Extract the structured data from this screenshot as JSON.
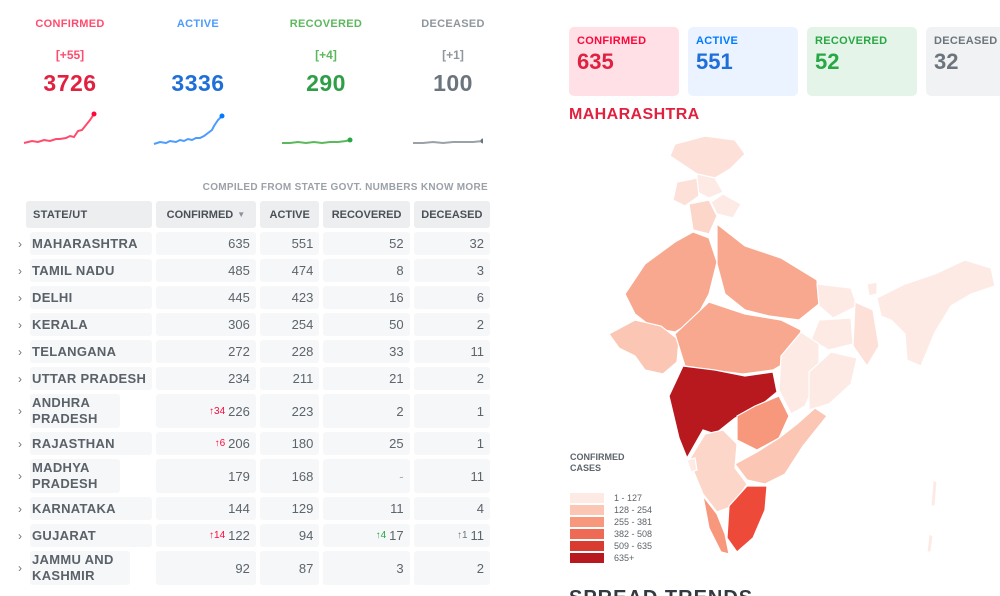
{
  "summary": [
    {
      "label": "CONFIRMED",
      "delta": "[+55]",
      "total": "3726",
      "color": "#ff073a"
    },
    {
      "label": "ACTIVE",
      "delta": "",
      "total": "3336",
      "color": "#007bff"
    },
    {
      "label": "RECOVERED",
      "delta": "[+4]",
      "total": "290",
      "color": "#28a745"
    },
    {
      "label": "DECEASED",
      "delta": "[+1]",
      "total": "100",
      "color": "#6c757d"
    }
  ],
  "compiled": {
    "text": "COMPILED FROM STATE GOVT. NUMBERS",
    "link": "KNOW MORE"
  },
  "table": {
    "headers": {
      "state": "STATE/UT",
      "confirmed": "CONFIRMED",
      "active": "ACTIVE",
      "recovered": "RECOVERED",
      "deceased": "DECEASED"
    },
    "rows": [
      {
        "state": "MAHARASHTRA",
        "conf_delta": "",
        "confirmed": "635",
        "active": "551",
        "rec_delta": "",
        "recovered": "52",
        "dec_delta": "",
        "deceased": "32"
      },
      {
        "state": "TAMIL NADU",
        "conf_delta": "",
        "confirmed": "485",
        "active": "474",
        "rec_delta": "",
        "recovered": "8",
        "dec_delta": "",
        "deceased": "3"
      },
      {
        "state": "DELHI",
        "conf_delta": "",
        "confirmed": "445",
        "active": "423",
        "rec_delta": "",
        "recovered": "16",
        "dec_delta": "",
        "deceased": "6"
      },
      {
        "state": "KERALA",
        "conf_delta": "",
        "confirmed": "306",
        "active": "254",
        "rec_delta": "",
        "recovered": "50",
        "dec_delta": "",
        "deceased": "2"
      },
      {
        "state": "TELANGANA",
        "conf_delta": "",
        "confirmed": "272",
        "active": "228",
        "rec_delta": "",
        "recovered": "33",
        "dec_delta": "",
        "deceased": "11"
      },
      {
        "state": "UTTAR PRADESH",
        "conf_delta": "",
        "confirmed": "234",
        "active": "211",
        "rec_delta": "",
        "recovered": "21",
        "dec_delta": "",
        "deceased": "2"
      },
      {
        "state": "ANDHRA PRADESH",
        "conf_delta": "↑34",
        "confirmed": "226",
        "active": "223",
        "rec_delta": "",
        "recovered": "2",
        "dec_delta": "",
        "deceased": "1"
      },
      {
        "state": "RAJASTHAN",
        "conf_delta": "↑6",
        "confirmed": "206",
        "active": "180",
        "rec_delta": "",
        "recovered": "25",
        "dec_delta": "",
        "deceased": "1"
      },
      {
        "state": "MADHYA PRADESH",
        "conf_delta": "",
        "confirmed": "179",
        "active": "168",
        "rec_delta": "",
        "recovered": "-",
        "dec_delta": "",
        "deceased": "11"
      },
      {
        "state": "KARNATAKA",
        "conf_delta": "",
        "confirmed": "144",
        "active": "129",
        "rec_delta": "",
        "recovered": "11",
        "dec_delta": "",
        "deceased": "4"
      },
      {
        "state": "GUJARAT",
        "conf_delta": "↑14",
        "confirmed": "122",
        "active": "94",
        "rec_delta": "↑4",
        "recovered": "17",
        "dec_delta": "↑1",
        "deceased": "11"
      },
      {
        "state": "JAMMU AND KASHMIR",
        "conf_delta": "",
        "confirmed": "92",
        "active": "87",
        "rec_delta": "",
        "recovered": "3",
        "dec_delta": "",
        "deceased": "2"
      }
    ]
  },
  "map_panel": {
    "stats": [
      {
        "label": "CONFIRMED",
        "value": "635"
      },
      {
        "label": "ACTIVE",
        "value": "551"
      },
      {
        "label": "RECOVERED",
        "value": "52"
      },
      {
        "label": "DECEASED",
        "value": "32"
      }
    ],
    "region": "MAHARASHTRA",
    "legend": {
      "title": "CONFIRMED CASES",
      "items": [
        {
          "label": "1 - 127",
          "color": "#fdeae4"
        },
        {
          "label": "128 - 254",
          "color": "#fbc6b3"
        },
        {
          "label": "255 - 381",
          "color": "#f7977c"
        },
        {
          "label": "382 - 508",
          "color": "#ee6a55"
        },
        {
          "label": "509 - 635",
          "color": "#d93b30"
        },
        {
          "label": "635+",
          "color": "#b7191f"
        }
      ]
    },
    "bottom_heading": "SPREAD TRENDS"
  }
}
